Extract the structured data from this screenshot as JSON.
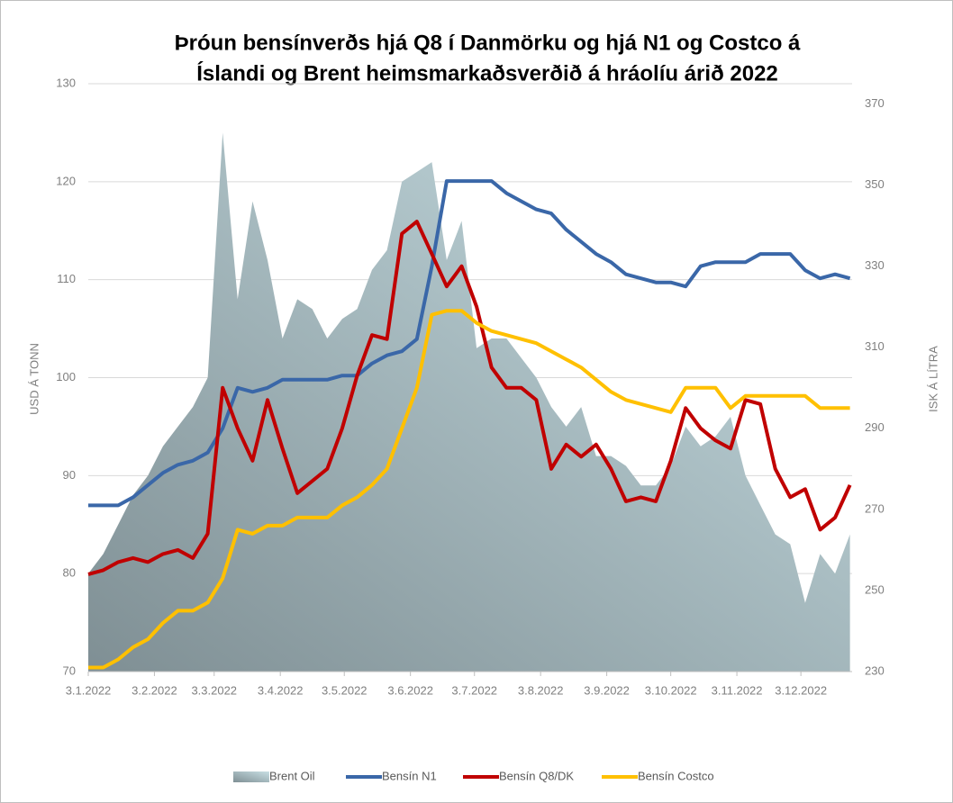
{
  "chart_data": {
    "type": "line",
    "title": [
      "Þróun bensínverðs hjá Q8 í Danmörku og hjá N1 og Costco á",
      "Íslandi og Brent heimsmarkaðsverðið á hráolíu árið 2022"
    ],
    "y_label": "USD Á TONN",
    "y2_label": "ISK Á LÍTRA",
    "x": [
      "3.1.2022",
      "10.1.2022",
      "17.1.2022",
      "24.1.2022",
      "31.1.2022",
      "7.2.2022",
      "14.2.2022",
      "21.2.2022",
      "28.2.2022",
      "7.3.2022",
      "14.3.2022",
      "21.3.2022",
      "28.3.2022",
      "4.4.2022",
      "11.4.2022",
      "18.4.2022",
      "25.4.2022",
      "2.5.2022",
      "9.5.2022",
      "16.5.2022",
      "23.5.2022",
      "30.5.2022",
      "6.6.2022",
      "13.6.2022",
      "20.6.2022",
      "27.6.2022",
      "4.7.2022",
      "11.7.2022",
      "18.7.2022",
      "25.7.2022",
      "1.8.2022",
      "8.8.2022",
      "15.8.2022",
      "22.8.2022",
      "29.8.2022",
      "5.9.2022",
      "12.9.2022",
      "19.9.2022",
      "26.9.2022",
      "3.10.2022",
      "10.10.2022",
      "17.10.2022",
      "24.10.2022",
      "31.10.2022",
      "7.11.2022",
      "14.11.2022",
      "21.11.2022",
      "28.11.2022",
      "5.12.2022",
      "12.12.2022",
      "19.12.2022",
      "26.12.2022"
    ],
    "xlim": [
      "3.1.2022",
      "27.12.2022"
    ],
    "xticks": [
      "3.1.2022",
      "3.2.2022",
      "3.3.2022",
      "3.4.2022",
      "3.5.2022",
      "3.6.2022",
      "3.7.2022",
      "3.8.2022",
      "3.9.2022",
      "3.10.2022",
      "3.11.2022",
      "3.12.2022"
    ],
    "ylim": [
      70,
      130
    ],
    "yticks": [
      70,
      80,
      90,
      100,
      110,
      120,
      130
    ],
    "y2lim": [
      230,
      375
    ],
    "y2ticks": [
      230,
      250,
      270,
      290,
      310,
      330,
      350,
      370
    ],
    "grid": true,
    "legend": "bottom",
    "series": [
      {
        "name": "Brent Oil",
        "type": "area",
        "color": [
          "#7f8f94",
          "#c8dfe4"
        ],
        "values": [
          80,
          82,
          85,
          88,
          90,
          93,
          95,
          97,
          100,
          125,
          108,
          118,
          112,
          104,
          108,
          107,
          104,
          106,
          107,
          111,
          113,
          120,
          121,
          122,
          112,
          116,
          103,
          104,
          104,
          102,
          100,
          97,
          95,
          97,
          92,
          92,
          91,
          89,
          89,
          91,
          95,
          93,
          94,
          96,
          90,
          87,
          84,
          83,
          77,
          82,
          80,
          84
        ]
      },
      {
        "name": "Bensín N1",
        "axis": "y2",
        "color": "#3a67a8",
        "values": [
          271,
          271,
          271,
          273,
          276,
          279,
          281,
          282,
          284,
          290,
          300,
          299,
          300,
          302,
          302,
          302,
          302,
          303,
          303,
          306,
          308,
          309,
          312,
          330,
          351,
          351,
          351,
          351,
          348,
          346,
          344,
          343,
          339,
          336,
          333,
          331,
          328,
          327,
          326,
          326,
          325,
          330,
          331,
          331,
          331,
          333,
          333,
          333,
          329,
          327,
          328,
          327
        ]
      },
      {
        "name": "Bensín Q8/DK",
        "axis": "y2",
        "color": "#c00000",
        "values": [
          254,
          255,
          257,
          258,
          257,
          259,
          260,
          258,
          264,
          300,
          290,
          282,
          297,
          285,
          274,
          277,
          280,
          290,
          303,
          313,
          312,
          338,
          341,
          333,
          325,
          330,
          320,
          305,
          300,
          300,
          297,
          280,
          286,
          283,
          286,
          280,
          272,
          273,
          272,
          282,
          295,
          290,
          287,
          285,
          297,
          296,
          280,
          273,
          275,
          265,
          268,
          276
        ]
      },
      {
        "name": "Bensín Costco",
        "axis": "y2",
        "color": "#ffc000",
        "values": [
          231,
          231,
          233,
          236,
          238,
          242,
          245,
          245,
          247,
          253,
          265,
          264,
          266,
          266,
          268,
          268,
          268,
          271,
          273,
          276,
          280,
          290,
          300,
          318,
          319,
          319,
          316,
          314,
          313,
          312,
          311,
          309,
          307,
          305,
          302,
          299,
          297,
          296,
          295,
          294,
          300,
          300,
          300,
          295,
          298,
          298,
          298,
          298,
          298,
          295,
          295,
          295
        ]
      }
    ]
  }
}
